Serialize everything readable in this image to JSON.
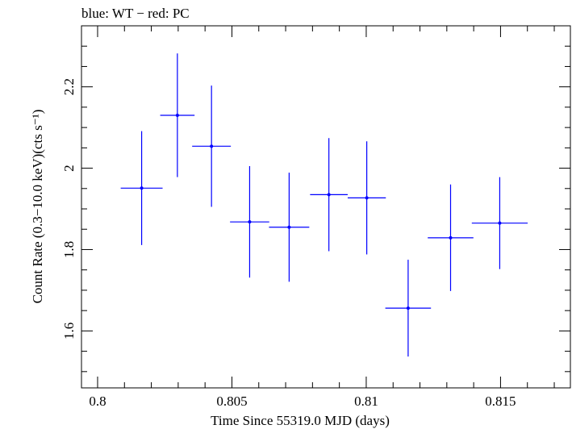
{
  "chart_data": {
    "type": "scatter",
    "title": "blue: WT − red: PC",
    "xlabel": "Time Since 55319.0 MJD (days)",
    "ylabel": "Count Rate (0.3−10.0 keV)(cts s⁻¹)",
    "xlim": [
      0.7994,
      0.8176
    ],
    "ylim": [
      1.46,
      2.35
    ],
    "xticks": [
      0.8,
      0.805,
      0.81,
      0.815
    ],
    "xtick_labels": [
      "0.8",
      "0.805",
      "0.81",
      "0.815"
    ],
    "yticks": [
      1.6,
      1.8,
      2.0,
      2.2
    ],
    "ytick_labels": [
      "1.6",
      "1.8",
      "2",
      "2.2"
    ],
    "grid": false,
    "series": [
      {
        "name": "WT",
        "color": "#0000ff",
        "points": [
          {
            "x": 0.80164,
            "xerr": 0.00078,
            "y": 1.951,
            "yerr": 0.14
          },
          {
            "x": 0.80297,
            "xerr": 0.00064,
            "y": 2.13,
            "yerr": 0.152
          },
          {
            "x": 0.80424,
            "xerr": 0.00072,
            "y": 2.054,
            "yerr": 0.149
          },
          {
            "x": 0.80566,
            "xerr": 0.00073,
            "y": 1.868,
            "yerr": 0.137
          },
          {
            "x": 0.80713,
            "xerr": 0.00075,
            "y": 1.855,
            "yerr": 0.134
          },
          {
            "x": 0.80861,
            "xerr": 0.0007,
            "y": 1.935,
            "yerr": 0.139
          },
          {
            "x": 0.81002,
            "xerr": 0.00071,
            "y": 1.927,
            "yerr": 0.139
          },
          {
            "x": 0.81156,
            "xerr": 0.00085,
            "y": 1.656,
            "yerr": 0.119
          },
          {
            "x": 0.81314,
            "xerr": 0.00085,
            "y": 1.829,
            "yerr": 0.131
          },
          {
            "x": 0.81497,
            "xerr": 0.00104,
            "y": 1.865,
            "yerr": 0.113
          }
        ]
      }
    ]
  }
}
